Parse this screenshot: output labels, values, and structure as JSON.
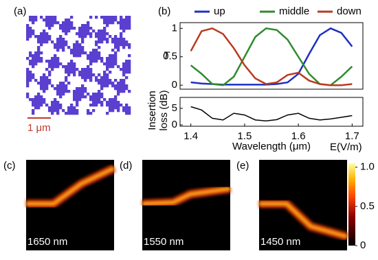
{
  "chart_data": [
    {
      "type": "line",
      "ylabel": "T",
      "xlim": [
        1.38,
        1.72
      ],
      "ylim": [
        -0.07,
        1.1
      ],
      "yticks": [
        0,
        0.5,
        1
      ],
      "x": [
        1.4,
        1.42,
        1.44,
        1.46,
        1.48,
        1.5,
        1.52,
        1.54,
        1.56,
        1.58,
        1.6,
        1.62,
        1.64,
        1.66,
        1.68,
        1.7
      ],
      "legend": "top",
      "series": [
        {
          "name": "up",
          "color": "#1f2fbf",
          "values": [
            0.05,
            0.03,
            0.02,
            0.01,
            0.01,
            0.01,
            0.01,
            0.01,
            0.02,
            0.05,
            0.2,
            0.55,
            0.88,
            1.0,
            0.92,
            0.68
          ]
        },
        {
          "name": "middle",
          "color": "#2e8b2e",
          "values": [
            0.35,
            0.2,
            0.02,
            0.0,
            0.15,
            0.5,
            0.85,
            1.0,
            0.97,
            0.8,
            0.5,
            0.2,
            0.02,
            0.0,
            0.15,
            0.33
          ]
        },
        {
          "name": "down",
          "color": "#b83a1e",
          "values": [
            0.6,
            0.95,
            1.0,
            0.9,
            0.65,
            0.35,
            0.12,
            0.02,
            0.05,
            0.18,
            0.22,
            0.08,
            0.02,
            0.0,
            0.0,
            0.02
          ]
        }
      ]
    },
    {
      "type": "line",
      "ylabel": [
        "Insertion",
        "loss (dB)"
      ],
      "xlabel": "Wavelength (μm)",
      "xlim": [
        1.38,
        1.72
      ],
      "ylim": [
        -0.4,
        8.3
      ],
      "xticks": [
        1.4,
        1.5,
        1.6,
        1.7
      ],
      "yticks": [
        0,
        5
      ],
      "x": [
        1.4,
        1.42,
        1.44,
        1.46,
        1.48,
        1.5,
        1.52,
        1.54,
        1.56,
        1.58,
        1.6,
        1.62,
        1.64,
        1.66,
        1.68,
        1.7
      ],
      "series": [
        {
          "color": "#000000",
          "values": [
            5.5,
            4.5,
            2.0,
            1.5,
            3.5,
            3.0,
            1.5,
            1.2,
            1.6,
            3.0,
            3.5,
            2.0,
            1.5,
            1.8,
            2.3,
            2.8
          ]
        }
      ]
    }
  ],
  "panels": {
    "a": "(a)",
    "b": "(b)",
    "c": "(c)",
    "d": "(d)",
    "e": "(e)"
  },
  "scale_bar": "1 μm",
  "fields": [
    "1650 nm",
    "1550 nm",
    "1450 nm"
  ],
  "colorbar": {
    "label": "E(V/m)",
    "lim": [
      0,
      1.05
    ],
    "ticks": [
      0,
      0.5,
      {
        "value": 1.0,
        "label": "1.0"
      }
    ]
  }
}
